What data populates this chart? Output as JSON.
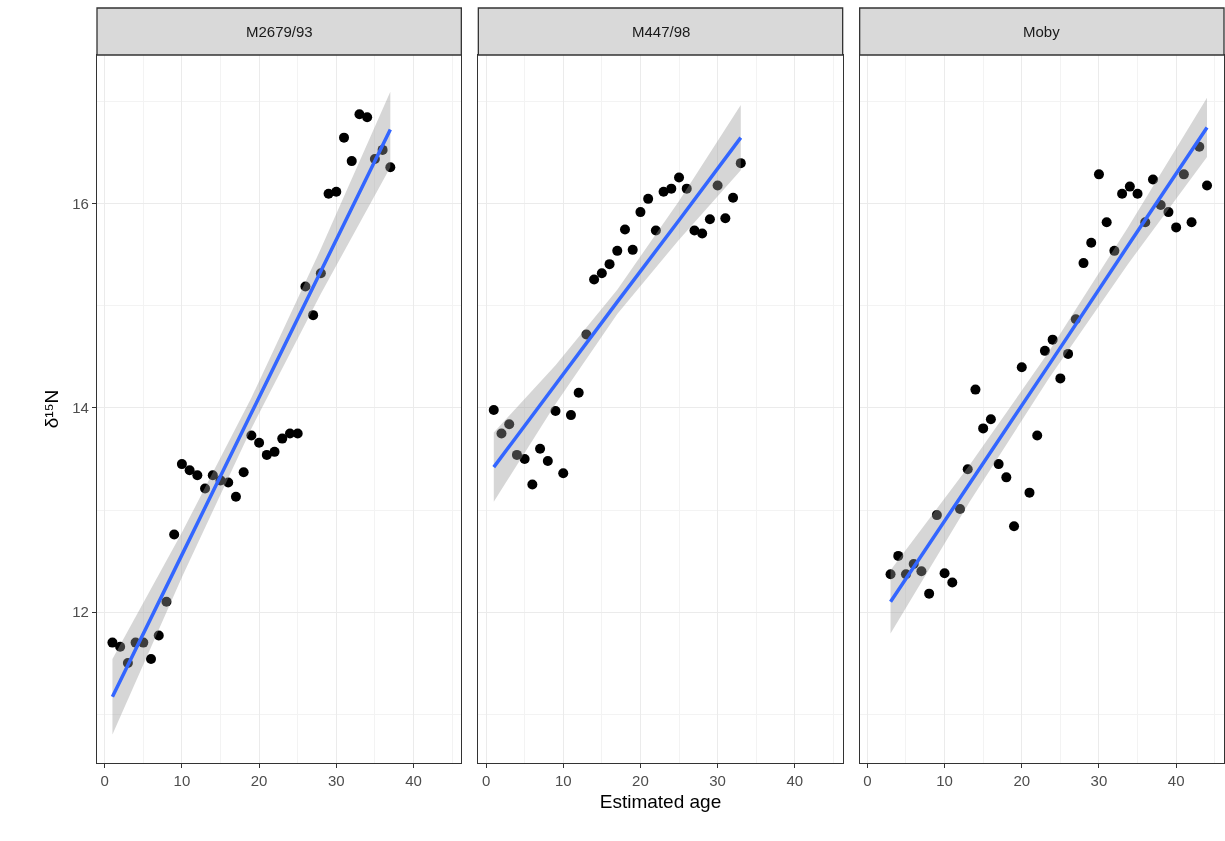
{
  "chart_data": [
    {
      "type": "scatter",
      "title": "M2679/93",
      "ylabel": "δ¹⁵N",
      "xlim": [
        -1.0,
        46.2
      ],
      "ylim": [
        10.52,
        17.46
      ],
      "xticks": [
        0,
        10,
        20,
        30,
        40
      ],
      "yticks": [
        12,
        14,
        16
      ],
      "grid": true,
      "marker": "circle",
      "series": [
        {
          "color": "#000000",
          "x": [
            1,
            2,
            3,
            4,
            5,
            6,
            7,
            8,
            9,
            10,
            11,
            12,
            13,
            14,
            15,
            16,
            17,
            18,
            19,
            20,
            21,
            22,
            23,
            24,
            25,
            26,
            27,
            28,
            29,
            30,
            31,
            32,
            33,
            34,
            35,
            36,
            37
          ],
          "values": [
            11.7,
            11.66,
            11.5,
            11.7,
            11.7,
            11.54,
            11.77,
            12.1,
            12.76,
            13.45,
            13.39,
            13.34,
            13.21,
            13.34,
            13.29,
            13.27,
            13.13,
            13.37,
            13.73,
            13.66,
            13.54,
            13.57,
            13.7,
            13.75,
            13.75,
            15.19,
            14.91,
            15.32,
            16.1,
            16.12,
            16.65,
            16.42,
            16.88,
            16.85,
            16.44,
            16.53,
            16.36
          ]
        },
        {
          "type": "line",
          "marker": "none",
          "color": "#3366ff",
          "x": [
            1,
            10,
            19,
            28,
            37
          ],
          "values": [
            11.17,
            12.56,
            13.95,
            15.34,
            16.73
          ],
          "lower": [
            10.8,
            12.34,
            13.8,
            15.12,
            16.36
          ],
          "upper": [
            11.54,
            12.78,
            14.1,
            15.56,
            17.1
          ]
        }
      ]
    },
    {
      "type": "scatter",
      "title": "M447/98",
      "xlabel": "Estimated age",
      "xlim": [
        -1.0,
        46.2
      ],
      "ylim": [
        10.52,
        17.46
      ],
      "xticks": [
        0,
        10,
        20,
        30,
        40
      ],
      "yticks": [
        12,
        14,
        16
      ],
      "grid": true,
      "marker": "circle",
      "tick_labels": "x",
      "series": [
        {
          "color": "#000000",
          "x": [
            1,
            2,
            3,
            4,
            5,
            6,
            7,
            8,
            9,
            10,
            11,
            12,
            13,
            14,
            15,
            16,
            17,
            18,
            19,
            20,
            21,
            22,
            23,
            24,
            25,
            26,
            27,
            28,
            29,
            30,
            31,
            32,
            33
          ],
          "values": [
            13.98,
            13.75,
            13.84,
            13.54,
            13.5,
            13.25,
            13.6,
            13.48,
            13.97,
            13.36,
            13.93,
            14.15,
            14.72,
            15.26,
            15.32,
            15.41,
            15.54,
            15.75,
            15.55,
            15.92,
            16.05,
            15.74,
            16.12,
            16.15,
            16.26,
            16.15,
            15.74,
            15.71,
            15.85,
            16.18,
            15.86,
            16.06,
            16.4
          ]
        },
        {
          "type": "line",
          "marker": "none",
          "color": "#3366ff",
          "x": [
            1,
            9,
            17,
            25,
            33
          ],
          "values": [
            13.42,
            14.23,
            15.04,
            15.84,
            16.65
          ],
          "lower": [
            13.08,
            14.04,
            14.92,
            15.65,
            16.33
          ],
          "upper": [
            13.76,
            14.42,
            15.16,
            16.03,
            16.97
          ]
        }
      ]
    },
    {
      "type": "scatter",
      "title": "Moby",
      "xlim": [
        -1.0,
        46.2
      ],
      "ylim": [
        10.52,
        17.46
      ],
      "xticks": [
        0,
        10,
        20,
        30,
        40
      ],
      "yticks": [
        12,
        14,
        16
      ],
      "grid": true,
      "marker": "circle",
      "tick_labels": "x",
      "series": [
        {
          "color": "#000000",
          "x": [
            3,
            4,
            5,
            6,
            7,
            8,
            9,
            10,
            11,
            12,
            13,
            14,
            15,
            16,
            17,
            18,
            19,
            20,
            21,
            22,
            23,
            24,
            25,
            26,
            27,
            28,
            29,
            30,
            31,
            32,
            33,
            34,
            35,
            36,
            37,
            38,
            39,
            40,
            41,
            42,
            43,
            44
          ],
          "values": [
            12.37,
            12.55,
            12.37,
            12.47,
            12.4,
            12.18,
            12.95,
            12.38,
            12.29,
            13.01,
            13.4,
            14.18,
            13.8,
            13.89,
            13.45,
            13.32,
            12.84,
            14.4,
            13.17,
            13.73,
            14.56,
            14.67,
            14.29,
            14.53,
            14.87,
            15.42,
            15.62,
            16.29,
            15.82,
            15.54,
            16.1,
            16.17,
            16.1,
            15.82,
            16.24,
            15.99,
            15.92,
            15.77,
            16.29,
            15.82,
            16.56,
            16.18
          ]
        },
        {
          "type": "line",
          "marker": "none",
          "color": "#3366ff",
          "x": [
            3,
            13.25,
            23.5,
            33.75,
            44
          ],
          "values": [
            12.1,
            13.26,
            14.42,
            15.59,
            16.75
          ],
          "lower": [
            11.79,
            13.08,
            14.29,
            15.41,
            16.46
          ],
          "upper": [
            12.41,
            13.44,
            14.55,
            15.77,
            17.04
          ]
        }
      ]
    }
  ]
}
